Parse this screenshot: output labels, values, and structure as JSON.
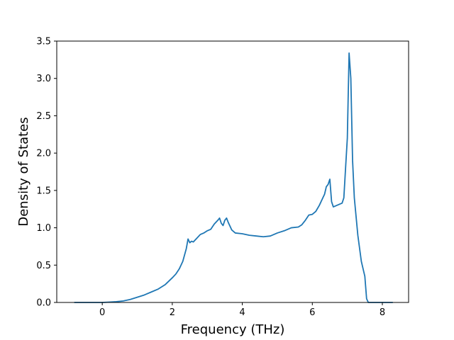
{
  "chart_data": {
    "type": "line",
    "title": "",
    "xlabel": "Frequency (THz)",
    "ylabel": "Density of States",
    "xlim": [
      -1.3,
      8.75
    ],
    "ylim": [
      0,
      3.5
    ],
    "xticks": [
      0,
      2,
      4,
      6,
      8
    ],
    "yticks": [
      0.0,
      0.5,
      1.0,
      1.5,
      2.0,
      2.5,
      3.0,
      3.5
    ],
    "xtick_labels": [
      "0",
      "2",
      "4",
      "6",
      "8"
    ],
    "ytick_labels": [
      "0.0",
      "0.5",
      "1.0",
      "1.5",
      "2.0",
      "2.5",
      "3.0",
      "3.5"
    ],
    "grid": false,
    "line_color": "#1f77b4",
    "series": [
      {
        "x": [
          -0.8,
          -0.4,
          0.0,
          0.2,
          0.4,
          0.6,
          0.8,
          1.0,
          1.2,
          1.4,
          1.6,
          1.8,
          2.0,
          2.1,
          2.2,
          2.3,
          2.4,
          2.45,
          2.5,
          2.55,
          2.6,
          2.7,
          2.8,
          2.9,
          3.0,
          3.1,
          3.2,
          3.3,
          3.35,
          3.4,
          3.45,
          3.5,
          3.55,
          3.6,
          3.7,
          3.8,
          4.0,
          4.2,
          4.4,
          4.6,
          4.8,
          5.0,
          5.2,
          5.4,
          5.6,
          5.7,
          5.8,
          5.9,
          6.0,
          6.1,
          6.2,
          6.3,
          6.35,
          6.4,
          6.45,
          6.5,
          6.55,
          6.6,
          6.7,
          6.8,
          6.85,
          6.9,
          6.95,
          7.0,
          7.05,
          7.1,
          7.15,
          7.2,
          7.3,
          7.4,
          7.5,
          7.55,
          7.6,
          7.8,
          8.0,
          8.3
        ],
        "y": [
          0.0,
          0.0,
          0.0,
          0.005,
          0.01,
          0.02,
          0.04,
          0.07,
          0.1,
          0.14,
          0.18,
          0.24,
          0.33,
          0.38,
          0.45,
          0.55,
          0.72,
          0.85,
          0.8,
          0.82,
          0.81,
          0.86,
          0.91,
          0.93,
          0.96,
          0.98,
          1.05,
          1.1,
          1.13,
          1.06,
          1.03,
          1.1,
          1.13,
          1.07,
          0.97,
          0.93,
          0.92,
          0.9,
          0.89,
          0.88,
          0.89,
          0.93,
          0.96,
          1.0,
          1.01,
          1.04,
          1.1,
          1.17,
          1.18,
          1.22,
          1.3,
          1.4,
          1.45,
          1.55,
          1.58,
          1.65,
          1.35,
          1.28,
          1.3,
          1.32,
          1.33,
          1.4,
          1.8,
          2.2,
          3.34,
          3.0,
          1.9,
          1.4,
          0.9,
          0.55,
          0.35,
          0.05,
          0.0,
          0.0,
          0.0,
          0.0
        ]
      }
    ]
  }
}
